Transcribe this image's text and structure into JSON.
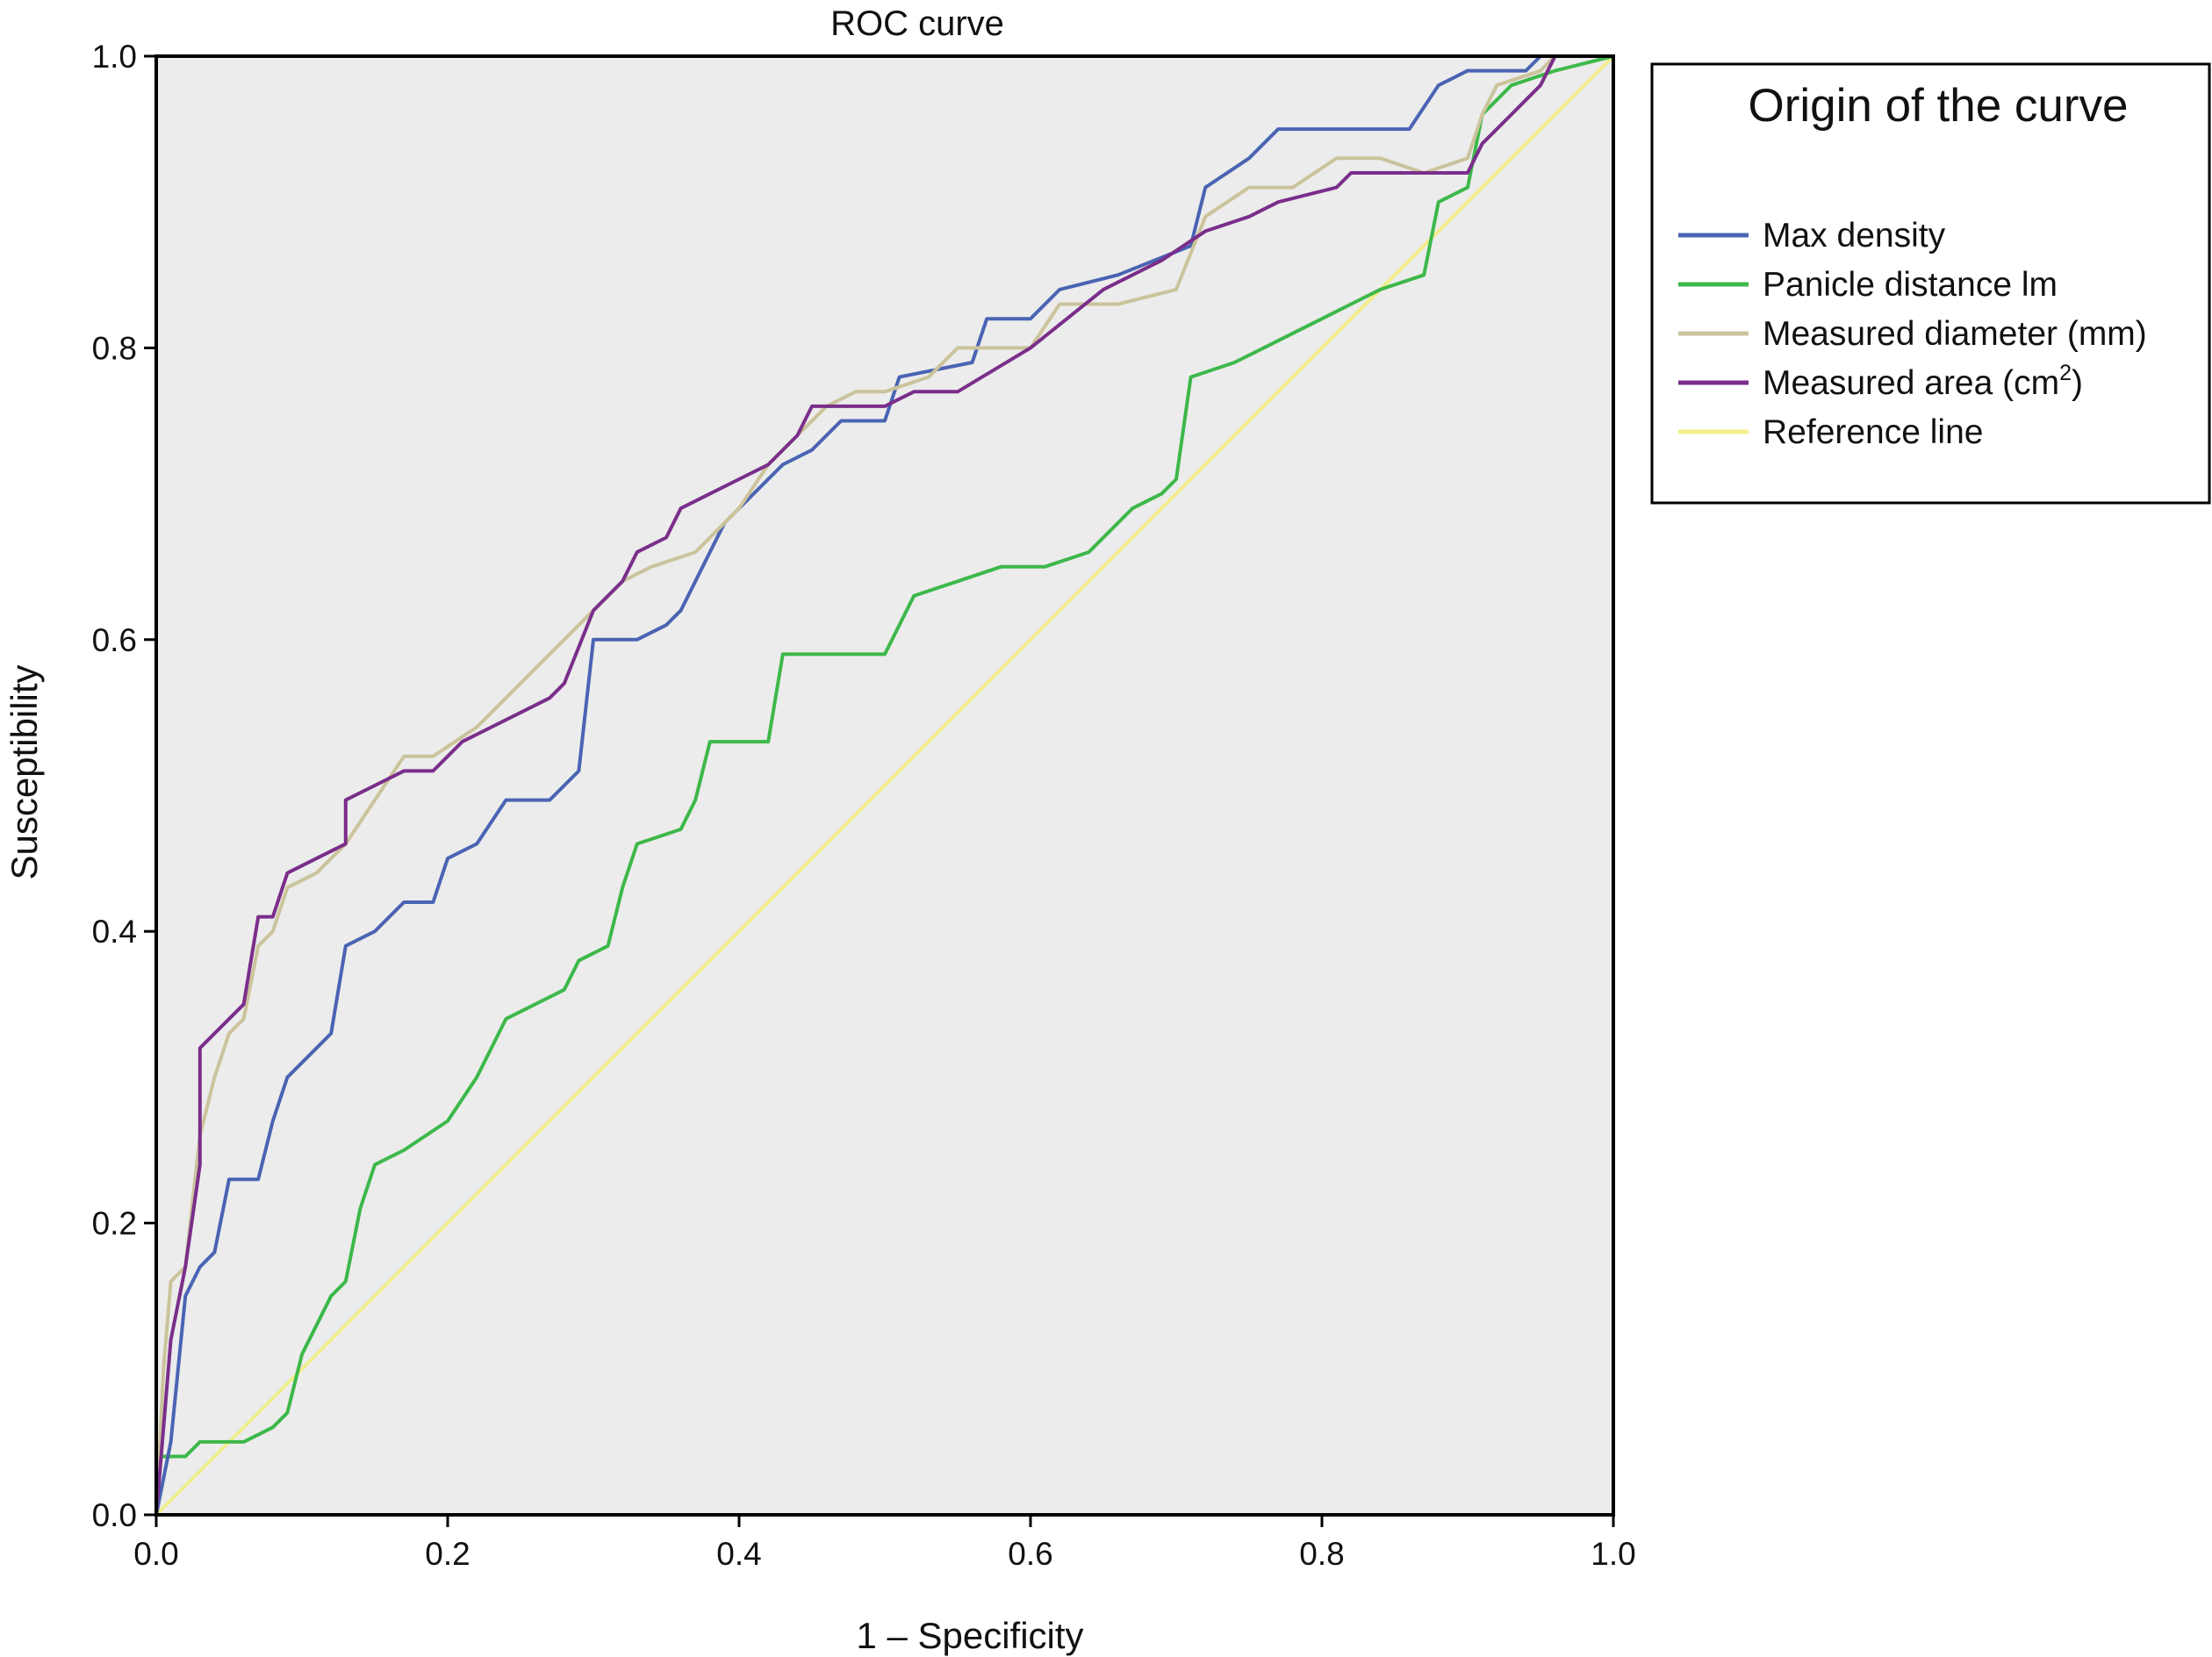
{
  "chart_data": {
    "type": "line",
    "title": "ROC curve",
    "xlabel": "1 – Specificity",
    "ylabel": "Susceptibility",
    "xlim": [
      0.0,
      1.0
    ],
    "ylim": [
      0.0,
      1.0
    ],
    "x_ticks": [
      "0.0",
      "0.2",
      "0.4",
      "0.6",
      "0.8",
      "1.0"
    ],
    "y_ticks": [
      "0.0",
      "0.2",
      "0.4",
      "0.6",
      "0.8",
      "1.0"
    ],
    "plot_background": "#ececec",
    "grid": false,
    "legend": {
      "title": "Origin of the curve",
      "placement": "right-top"
    },
    "series": [
      {
        "name": "Max density",
        "legend_label": "Max density",
        "color": "#4a64b3",
        "points": [
          [
            0,
            0
          ],
          [
            0.01,
            0.05
          ],
          [
            0.02,
            0.15
          ],
          [
            0.03,
            0.17
          ],
          [
            0.04,
            0.18
          ],
          [
            0.05,
            0.23
          ],
          [
            0.07,
            0.23
          ],
          [
            0.08,
            0.27
          ],
          [
            0.09,
            0.3
          ],
          [
            0.11,
            0.32
          ],
          [
            0.12,
            0.33
          ],
          [
            0.13,
            0.39
          ],
          [
            0.15,
            0.4
          ],
          [
            0.17,
            0.42
          ],
          [
            0.19,
            0.42
          ],
          [
            0.2,
            0.45
          ],
          [
            0.22,
            0.46
          ],
          [
            0.24,
            0.49
          ],
          [
            0.27,
            0.49
          ],
          [
            0.29,
            0.51
          ],
          [
            0.3,
            0.6
          ],
          [
            0.33,
            0.6
          ],
          [
            0.35,
            0.61
          ],
          [
            0.36,
            0.62
          ],
          [
            0.38,
            0.66
          ],
          [
            0.39,
            0.68
          ],
          [
            0.41,
            0.7
          ],
          [
            0.43,
            0.72
          ],
          [
            0.45,
            0.73
          ],
          [
            0.47,
            0.75
          ],
          [
            0.5,
            0.75
          ],
          [
            0.51,
            0.78
          ],
          [
            0.56,
            0.79
          ],
          [
            0.57,
            0.82
          ],
          [
            0.6,
            0.82
          ],
          [
            0.62,
            0.84
          ],
          [
            0.66,
            0.85
          ],
          [
            0.71,
            0.87
          ],
          [
            0.72,
            0.91
          ],
          [
            0.75,
            0.93
          ],
          [
            0.77,
            0.95
          ],
          [
            0.86,
            0.95
          ],
          [
            0.88,
            0.98
          ],
          [
            0.9,
            0.99
          ],
          [
            0.94,
            0.99
          ],
          [
            0.95,
            1.0
          ],
          [
            1.0,
            1.0
          ]
        ]
      },
      {
        "name": "Panicle distance lm",
        "legend_label": "Panicle distance lm",
        "color": "#3db84a",
        "points": [
          [
            0,
            0
          ],
          [
            0,
            0.04
          ],
          [
            0.02,
            0.04
          ],
          [
            0.03,
            0.05
          ],
          [
            0.06,
            0.05
          ],
          [
            0.08,
            0.06
          ],
          [
            0.09,
            0.07
          ],
          [
            0.1,
            0.11
          ],
          [
            0.12,
            0.15
          ],
          [
            0.13,
            0.16
          ],
          [
            0.14,
            0.21
          ],
          [
            0.15,
            0.24
          ],
          [
            0.17,
            0.25
          ],
          [
            0.2,
            0.27
          ],
          [
            0.22,
            0.3
          ],
          [
            0.24,
            0.34
          ],
          [
            0.26,
            0.35
          ],
          [
            0.28,
            0.36
          ],
          [
            0.29,
            0.38
          ],
          [
            0.31,
            0.39
          ],
          [
            0.32,
            0.43
          ],
          [
            0.33,
            0.46
          ],
          [
            0.36,
            0.47
          ],
          [
            0.37,
            0.49
          ],
          [
            0.38,
            0.53
          ],
          [
            0.42,
            0.53
          ],
          [
            0.43,
            0.59
          ],
          [
            0.5,
            0.59
          ],
          [
            0.52,
            0.63
          ],
          [
            0.55,
            0.64
          ],
          [
            0.58,
            0.65
          ],
          [
            0.61,
            0.65
          ],
          [
            0.64,
            0.66
          ],
          [
            0.67,
            0.69
          ],
          [
            0.69,
            0.7
          ],
          [
            0.7,
            0.71
          ],
          [
            0.71,
            0.78
          ],
          [
            0.74,
            0.79
          ],
          [
            0.76,
            0.8
          ],
          [
            0.78,
            0.81
          ],
          [
            0.8,
            0.82
          ],
          [
            0.82,
            0.83
          ],
          [
            0.84,
            0.84
          ],
          [
            0.87,
            0.85
          ],
          [
            0.88,
            0.9
          ],
          [
            0.9,
            0.91
          ],
          [
            0.91,
            0.96
          ],
          [
            0.93,
            0.98
          ],
          [
            0.96,
            0.99
          ],
          [
            1.0,
            1.0
          ]
        ]
      },
      {
        "name": "Measured diameter (mm)",
        "legend_label": "Measured diameter (mm)",
        "color": "#cbc39b",
        "points": [
          [
            0,
            0
          ],
          [
            0.005,
            0.1
          ],
          [
            0.01,
            0.16
          ],
          [
            0.02,
            0.17
          ],
          [
            0.03,
            0.26
          ],
          [
            0.04,
            0.3
          ],
          [
            0.05,
            0.33
          ],
          [
            0.06,
            0.34
          ],
          [
            0.07,
            0.39
          ],
          [
            0.08,
            0.4
          ],
          [
            0.09,
            0.43
          ],
          [
            0.11,
            0.44
          ],
          [
            0.13,
            0.46
          ],
          [
            0.15,
            0.49
          ],
          [
            0.17,
            0.52
          ],
          [
            0.19,
            0.52
          ],
          [
            0.22,
            0.54
          ],
          [
            0.24,
            0.56
          ],
          [
            0.26,
            0.58
          ],
          [
            0.28,
            0.6
          ],
          [
            0.3,
            0.62
          ],
          [
            0.32,
            0.64
          ],
          [
            0.34,
            0.65
          ],
          [
            0.37,
            0.66
          ],
          [
            0.39,
            0.68
          ],
          [
            0.4,
            0.69
          ],
          [
            0.42,
            0.72
          ],
          [
            0.44,
            0.74
          ],
          [
            0.46,
            0.76
          ],
          [
            0.48,
            0.77
          ],
          [
            0.5,
            0.77
          ],
          [
            0.53,
            0.78
          ],
          [
            0.55,
            0.8
          ],
          [
            0.6,
            0.8
          ],
          [
            0.62,
            0.83
          ],
          [
            0.66,
            0.83
          ],
          [
            0.7,
            0.84
          ],
          [
            0.72,
            0.89
          ],
          [
            0.75,
            0.91
          ],
          [
            0.78,
            0.91
          ],
          [
            0.81,
            0.93
          ],
          [
            0.84,
            0.93
          ],
          [
            0.87,
            0.92
          ],
          [
            0.9,
            0.93
          ],
          [
            0.91,
            0.96
          ],
          [
            0.92,
            0.98
          ],
          [
            0.95,
            0.99
          ],
          [
            0.96,
            1.0
          ],
          [
            1.0,
            1.0
          ]
        ]
      },
      {
        "name": "Measured area (cm2)",
        "legend_label": "Measured area (cm",
        "legend_sup": "2",
        "legend_suffix": ")",
        "color": "#7a2e8a",
        "points": [
          [
            0,
            0
          ],
          [
            0.005,
            0.06
          ],
          [
            0.01,
            0.12
          ],
          [
            0.02,
            0.17
          ],
          [
            0.03,
            0.24
          ],
          [
            0.03,
            0.32
          ],
          [
            0.04,
            0.33
          ],
          [
            0.05,
            0.34
          ],
          [
            0.06,
            0.35
          ],
          [
            0.07,
            0.41
          ],
          [
            0.08,
            0.41
          ],
          [
            0.09,
            0.44
          ],
          [
            0.11,
            0.45
          ],
          [
            0.13,
            0.46
          ],
          [
            0.13,
            0.49
          ],
          [
            0.15,
            0.5
          ],
          [
            0.17,
            0.51
          ],
          [
            0.19,
            0.51
          ],
          [
            0.21,
            0.53
          ],
          [
            0.23,
            0.54
          ],
          [
            0.25,
            0.55
          ],
          [
            0.27,
            0.56
          ],
          [
            0.28,
            0.57
          ],
          [
            0.3,
            0.62
          ],
          [
            0.32,
            0.64
          ],
          [
            0.33,
            0.66
          ],
          [
            0.35,
            0.67
          ],
          [
            0.36,
            0.69
          ],
          [
            0.38,
            0.7
          ],
          [
            0.4,
            0.71
          ],
          [
            0.42,
            0.72
          ],
          [
            0.44,
            0.74
          ],
          [
            0.45,
            0.76
          ],
          [
            0.48,
            0.76
          ],
          [
            0.5,
            0.76
          ],
          [
            0.52,
            0.77
          ],
          [
            0.55,
            0.77
          ],
          [
            0.6,
            0.8
          ],
          [
            0.65,
            0.84
          ],
          [
            0.69,
            0.86
          ],
          [
            0.72,
            0.88
          ],
          [
            0.75,
            0.89
          ],
          [
            0.77,
            0.9
          ],
          [
            0.81,
            0.91
          ],
          [
            0.82,
            0.92
          ],
          [
            0.86,
            0.92
          ],
          [
            0.9,
            0.92
          ],
          [
            0.91,
            0.94
          ],
          [
            0.93,
            0.96
          ],
          [
            0.95,
            0.98
          ],
          [
            0.96,
            1.0
          ],
          [
            1.0,
            1.0
          ]
        ]
      },
      {
        "name": "Reference line",
        "legend_label": "Reference line",
        "color": "#f2ee8c",
        "points": [
          [
            0,
            0
          ],
          [
            1,
            1
          ]
        ]
      }
    ]
  }
}
